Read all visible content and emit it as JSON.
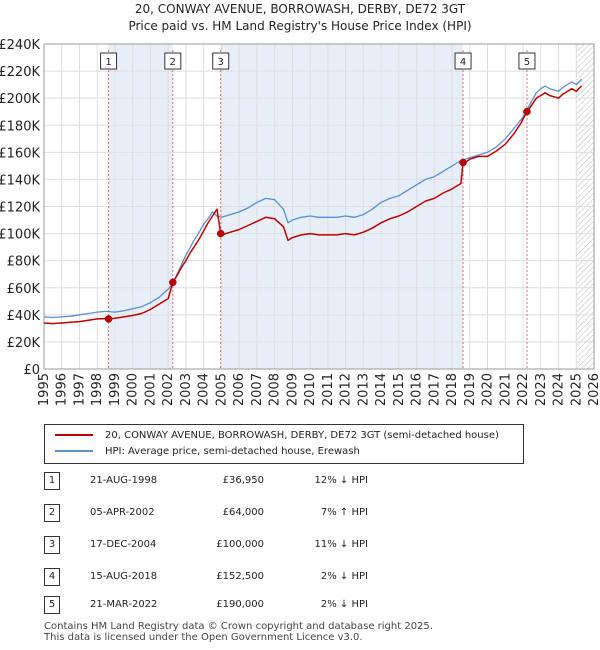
{
  "chart_data": {
    "type": "line",
    "title": "20, CONWAY AVENUE, BORROWASH, DERBY, DE72 3GT",
    "subtitle": "Price paid vs. HM Land Registry's House Price Index (HPI)",
    "xlabel": "",
    "ylabel": "",
    "xlim": [
      1995,
      2026
    ],
    "ylim": [
      0,
      240000
    ],
    "x_ticks": [
      "1995",
      "1996",
      "1997",
      "1998",
      "1999",
      "2000",
      "2001",
      "2002",
      "2003",
      "2004",
      "2005",
      "2006",
      "2007",
      "2008",
      "2009",
      "2010",
      "2011",
      "2012",
      "2013",
      "2014",
      "2015",
      "2016",
      "2017",
      "2018",
      "2019",
      "2020",
      "2021",
      "2022",
      "2023",
      "2024",
      "2025",
      "2026"
    ],
    "y_ticks": [
      {
        "value": 0,
        "label": "£0"
      },
      {
        "value": 20000,
        "label": "£20K"
      },
      {
        "value": 40000,
        "label": "£40K"
      },
      {
        "value": 60000,
        "label": "£60K"
      },
      {
        "value": 80000,
        "label": "£80K"
      },
      {
        "value": 100000,
        "label": "£100K"
      },
      {
        "value": 120000,
        "label": "£120K"
      },
      {
        "value": 140000,
        "label": "£140K"
      },
      {
        "value": 160000,
        "label": "£160K"
      },
      {
        "value": 180000,
        "label": "£180K"
      },
      {
        "value": 200000,
        "label": "£200K"
      },
      {
        "value": 220000,
        "label": "£220K"
      },
      {
        "value": 240000,
        "label": "£240K"
      }
    ],
    "grid": true,
    "series": [
      {
        "name": "HPI: Average price, semi-detached house, Erewash",
        "color": "#5b8fd0",
        "x": [
          1995.0,
          1995.5,
          1996.0,
          1996.5,
          1997.0,
          1997.5,
          1998.0,
          1998.5,
          1999.0,
          1999.5,
          2000.0,
          2000.5,
          2001.0,
          2001.5,
          2002.0,
          2002.25,
          2002.5,
          2002.75,
          2003.0,
          2003.25,
          2003.5,
          2003.75,
          2004.0,
          2004.25,
          2004.5,
          2004.75,
          2005.0,
          2005.5,
          2006.0,
          2006.5,
          2007.0,
          2007.5,
          2008.0,
          2008.5,
          2008.75,
          2009.0,
          2009.5,
          2010.0,
          2010.5,
          2011.0,
          2011.5,
          2012.0,
          2012.5,
          2013.0,
          2013.5,
          2014.0,
          2014.5,
          2015.0,
          2015.5,
          2016.0,
          2016.5,
          2017.0,
          2017.5,
          2018.0,
          2018.5,
          2019.0,
          2019.5,
          2020.0,
          2020.5,
          2021.0,
          2021.5,
          2022.0,
          2022.25,
          2022.5,
          2022.75,
          2023.0,
          2023.25,
          2023.5,
          2023.75,
          2024.0,
          2024.25,
          2024.5,
          2024.75,
          2025.0,
          2025.3
        ],
        "values": [
          38500,
          38000,
          38500,
          39000,
          40000,
          41000,
          42000,
          42500,
          42000,
          43000,
          44500,
          46000,
          49000,
          53000,
          59000,
          63000,
          70000,
          77000,
          84000,
          90000,
          96000,
          101000,
          107000,
          111000,
          116000,
          113000,
          112000,
          114000,
          116000,
          119000,
          123000,
          126000,
          125000,
          118000,
          108000,
          110000,
          112000,
          113000,
          112000,
          112000,
          112000,
          113000,
          112000,
          114000,
          118000,
          123000,
          126000,
          128000,
          132000,
          136000,
          140000,
          142000,
          146000,
          150000,
          154000,
          156000,
          158000,
          160000,
          164000,
          170000,
          178000,
          186000,
          192000,
          198000,
          204000,
          207000,
          209000,
          207000,
          206000,
          205000,
          208000,
          210000,
          212000,
          210000,
          214000
        ]
      },
      {
        "name": "20, CONWAY AVENUE, BORROWASH, DERBY, DE72 3GT (semi-detached house)",
        "color": "#c00000",
        "x": [
          1995.0,
          1995.5,
          1996.0,
          1996.5,
          1997.0,
          1997.5,
          1998.0,
          1998.5,
          1998.64,
          1999.0,
          1999.5,
          2000.0,
          2000.5,
          2001.0,
          2001.5,
          2002.0,
          2002.26,
          2002.5,
          2002.75,
          2003.0,
          2003.25,
          2003.5,
          2003.75,
          2004.0,
          2004.25,
          2004.5,
          2004.75,
          2004.96,
          2005.0,
          2005.5,
          2006.0,
          2006.5,
          2007.0,
          2007.5,
          2008.0,
          2008.5,
          2008.75,
          2009.0,
          2009.5,
          2010.0,
          2010.5,
          2011.0,
          2011.5,
          2012.0,
          2012.5,
          2013.0,
          2013.5,
          2014.0,
          2014.5,
          2015.0,
          2015.5,
          2016.0,
          2016.5,
          2017.0,
          2017.5,
          2018.0,
          2018.5,
          2018.62,
          2018.8,
          2019.0,
          2019.5,
          2020.0,
          2020.5,
          2021.0,
          2021.5,
          2021.9,
          2022.22,
          2022.5,
          2022.75,
          2023.0,
          2023.25,
          2023.5,
          2023.75,
          2024.0,
          2024.25,
          2024.5,
          2024.75,
          2025.0,
          2025.3
        ],
        "values": [
          34000,
          33500,
          34000,
          34500,
          35000,
          36000,
          37000,
          37200,
          36950,
          37500,
          38500,
          39500,
          41000,
          44000,
          48000,
          52000,
          64000,
          69000,
          75000,
          80000,
          86000,
          91000,
          96000,
          102000,
          108000,
          113000,
          118000,
          100000,
          99000,
          101000,
          103000,
          106000,
          109000,
          112000,
          111000,
          105000,
          95000,
          97000,
          99000,
          100000,
          99000,
          99000,
          99000,
          100000,
          99000,
          101000,
          104000,
          108000,
          111000,
          113000,
          116000,
          120000,
          124000,
          126000,
          130000,
          133000,
          137000,
          152500,
          153000,
          155000,
          157000,
          157000,
          161000,
          166000,
          174000,
          182000,
          190000,
          195000,
          200000,
          202000,
          204000,
          202000,
          201000,
          200000,
          203000,
          205000,
          207000,
          205000,
          209000
        ]
      }
    ],
    "sale_markers": [
      {
        "label": "1",
        "x": 1998.64,
        "value": 36950
      },
      {
        "label": "2",
        "x": 2002.26,
        "value": 64000
      },
      {
        "label": "3",
        "x": 2004.96,
        "value": 100000
      },
      {
        "label": "4",
        "x": 2018.62,
        "value": 152500
      },
      {
        "label": "5",
        "x": 2022.22,
        "value": 190000
      }
    ],
    "forecast_start_x": 2025.0
  },
  "legend": {
    "property_label": "20, CONWAY AVENUE, BORROWASH, DERBY, DE72 3GT (semi-detached house)",
    "hpi_label": "HPI: Average price, semi-detached house, Erewash"
  },
  "sales": [
    {
      "num": "1",
      "date": "21-AUG-1998",
      "price": "£36,950",
      "hpi": "12% ↓ HPI"
    },
    {
      "num": "2",
      "date": "05-APR-2002",
      "price": "£64,000",
      "hpi": "7% ↑ HPI"
    },
    {
      "num": "3",
      "date": "17-DEC-2004",
      "price": "£100,000",
      "hpi": "11% ↓ HPI"
    },
    {
      "num": "4",
      "date": "15-AUG-2018",
      "price": "£152,500",
      "hpi": "2% ↓ HPI"
    },
    {
      "num": "5",
      "date": "21-MAR-2022",
      "price": "£190,000",
      "hpi": "2% ↓ HPI"
    }
  ],
  "footer": {
    "line1": "Contains HM Land Registry data © Crown copyright and database right 2025.",
    "line2": "This data is licensed under the Open Government Licence v3.0."
  }
}
